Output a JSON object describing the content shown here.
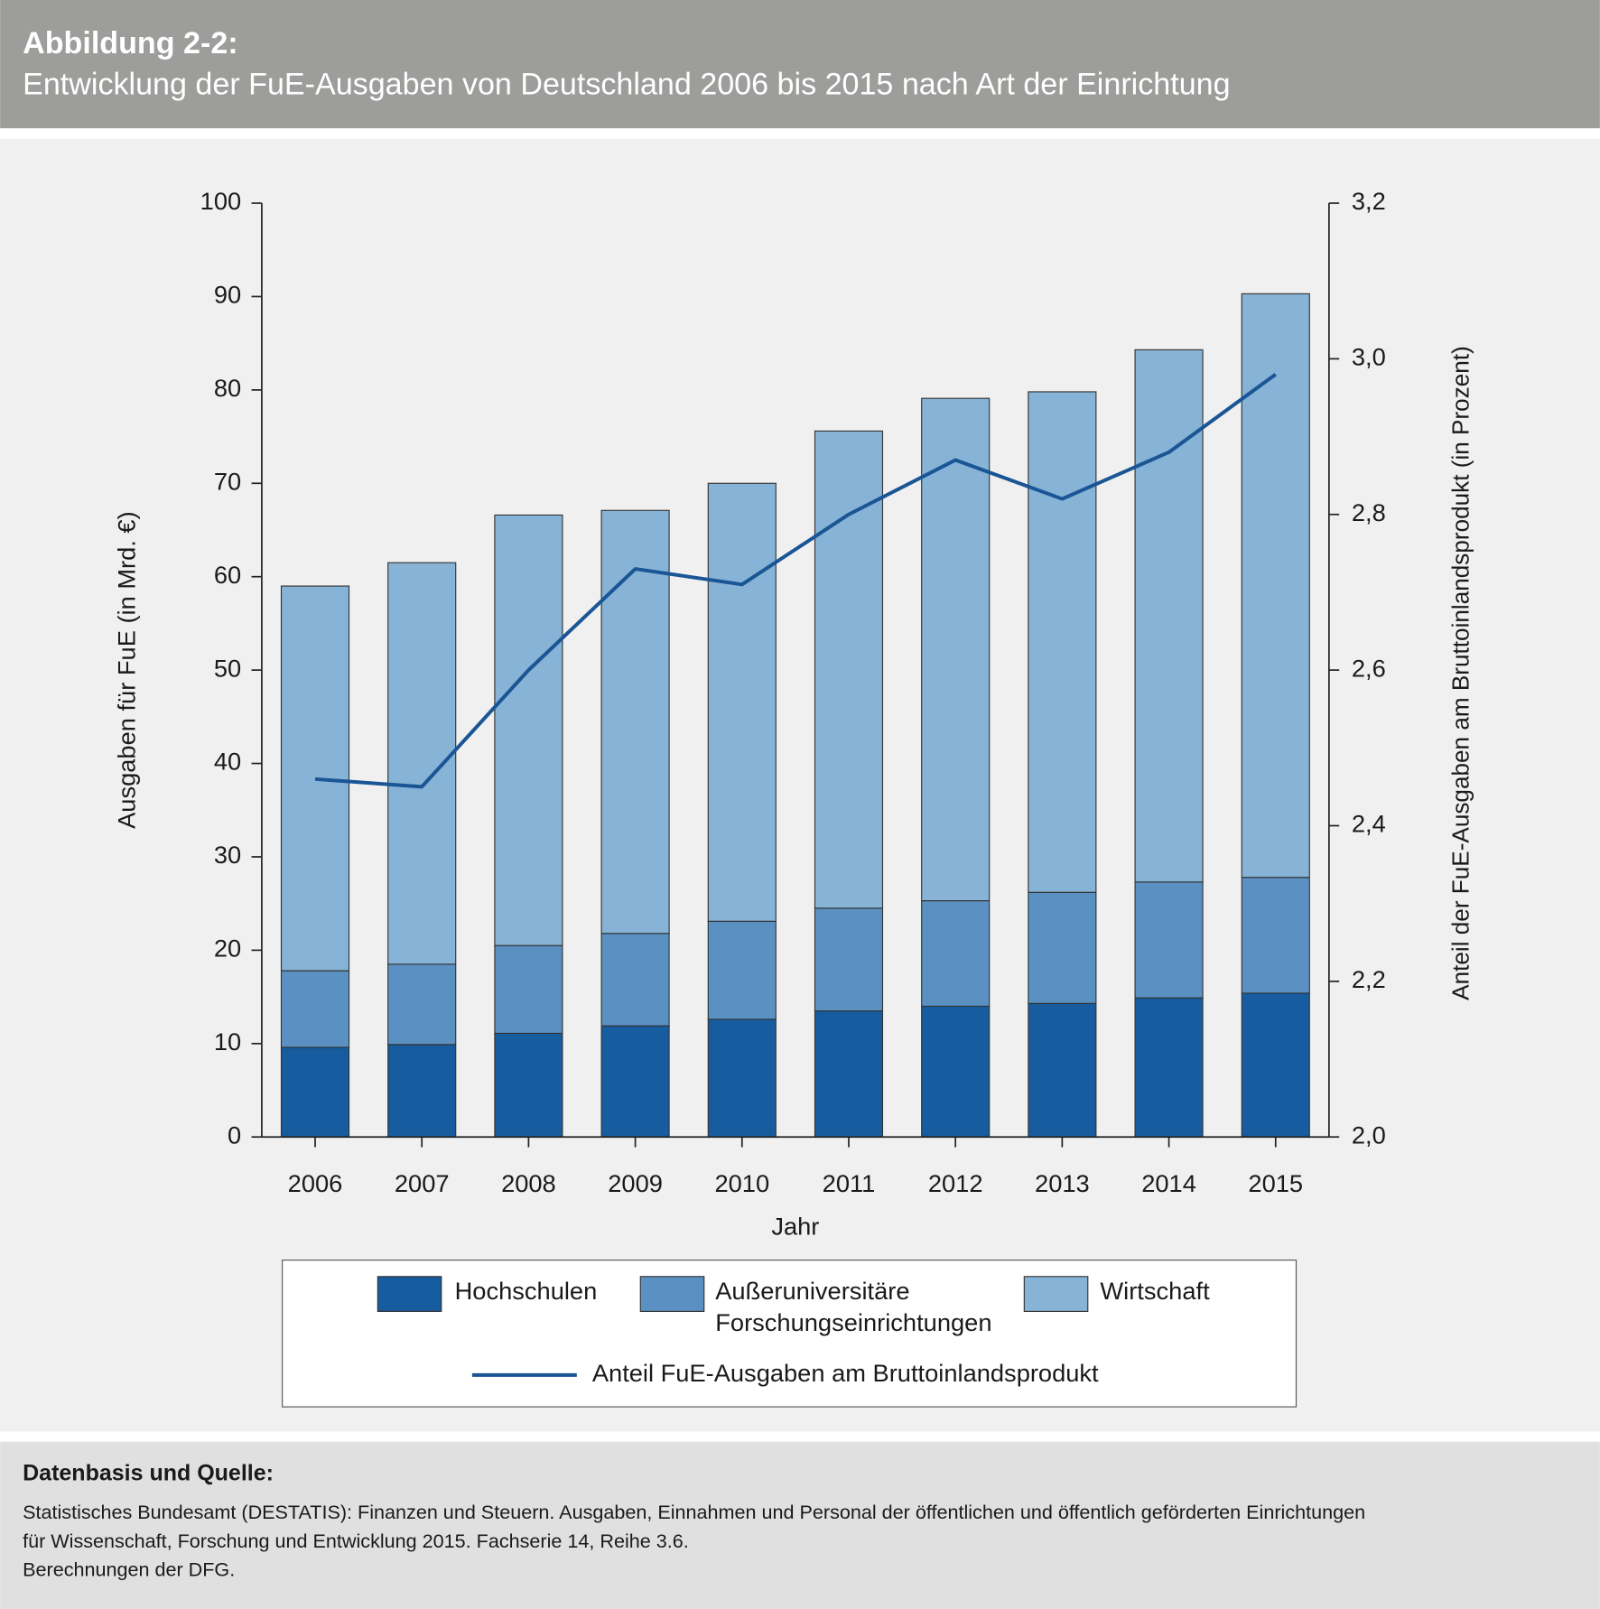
{
  "header": {
    "title": "Abbildung 2-2:",
    "subtitle": "Entwicklung der FuE-Ausgaben von Deutschland 2006 bis 2015 nach Art der Einrichtung"
  },
  "chart_data": {
    "type": "bar",
    "stacked": true,
    "categories": [
      "2006",
      "2007",
      "2008",
      "2009",
      "2010",
      "2011",
      "2012",
      "2013",
      "2014",
      "2015"
    ],
    "x_label": "Jahr",
    "y_label": "Ausgaben für FuE (in Mrd. €)",
    "y2_label": "Anteil der FuE-Ausgaben am Bruttoinlandsprodukt (in Prozent)",
    "ylim": [
      0,
      100
    ],
    "yticks": [
      0,
      10,
      20,
      30,
      40,
      50,
      60,
      70,
      80,
      90,
      100
    ],
    "y2lim": [
      2.0,
      3.2
    ],
    "y2ticks": [
      {
        "value": 2.0,
        "label": "2,0"
      },
      {
        "value": 2.2,
        "label": "2,2"
      },
      {
        "value": 2.4,
        "label": "2,4"
      },
      {
        "value": 2.6,
        "label": "2,6"
      },
      {
        "value": 2.8,
        "label": "2,8"
      },
      {
        "value": 3.0,
        "label": "3,0"
      },
      {
        "value": 3.2,
        "label": "3,2"
      }
    ],
    "series": [
      {
        "name": "Hochschulen",
        "color": "#165c9e",
        "values": [
          9.6,
          9.9,
          11.1,
          11.9,
          12.6,
          13.5,
          14.0,
          14.3,
          14.9,
          15.4
        ]
      },
      {
        "name": "Außeruniversitäre Forschungseinrichtungen",
        "color": "#5b91c2",
        "values": [
          8.2,
          8.6,
          9.4,
          9.9,
          10.5,
          11.0,
          11.3,
          11.9,
          12.4,
          12.4
        ]
      },
      {
        "name": "Wirtschaft",
        "color": "#86b3d6",
        "values": [
          41.2,
          43.0,
          46.1,
          45.3,
          46.9,
          51.1,
          53.8,
          53.6,
          57.0,
          62.5
        ]
      },
      {
        "name": "Anteil FuE-Ausgaben am Bruttoinlandsprodukt",
        "type": "line",
        "axis": "y2",
        "color": "#1a5595",
        "values": [
          2.46,
          2.45,
          2.6,
          2.73,
          2.71,
          2.8,
          2.87,
          2.82,
          2.88,
          2.98
        ]
      }
    ],
    "legend": "bottom"
  },
  "footer": {
    "title": "Datenbasis und Quelle:",
    "lines": [
      "Statistisches Bundesamt (DESTATIS): Finanzen und Steuern. Ausgaben, Einnahmen und Personal der öffentlichen und öffentlich geförderten Einrichtungen",
      "für Wissenschaft, Forschung und Entwicklung 2015. Fachserie 14, Reihe 3.6.",
      "Berechnungen der DFG."
    ]
  }
}
